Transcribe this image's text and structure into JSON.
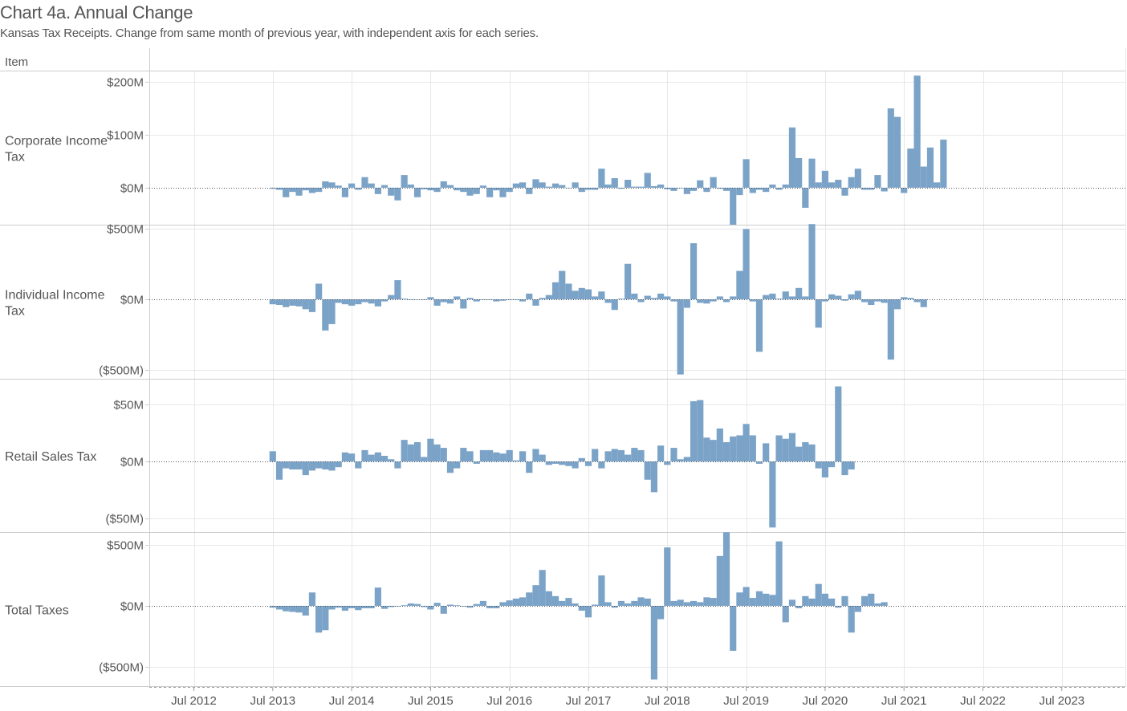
{
  "title": "Chart 4a. Annual Change",
  "subtitle": "Kansas Tax Receipts. Change from same month of previous year, with independent axis for each series.",
  "row_header": "Item",
  "colors": {
    "bar": "#7ba3c8",
    "grid": "#e8e8e8",
    "text": "#555555",
    "divider": "#cccccc"
  },
  "chart_data": [
    {
      "type": "bar",
      "title": "Corporate Income Tax",
      "x_start": "2013-07",
      "unit": "$M",
      "ylim": [
        -70,
        220
      ],
      "y_ticks": [
        {
          "v": 200,
          "label": "$200M"
        },
        {
          "v": 100,
          "label": "$100M"
        },
        {
          "v": 0,
          "label": "$0M"
        }
      ],
      "values": [
        -2,
        -4,
        -18,
        -8,
        -15,
        -5,
        -10,
        -8,
        12,
        10,
        4,
        -18,
        8,
        -4,
        20,
        8,
        -12,
        5,
        -15,
        -24,
        24,
        6,
        -18,
        -3,
        -5,
        -8,
        12,
        5,
        -5,
        -8,
        -15,
        -12,
        4,
        -18,
        -5,
        -18,
        -8,
        8,
        10,
        -12,
        16,
        10,
        2,
        8,
        5,
        0,
        10,
        -8,
        -4,
        -4,
        36,
        6,
        18,
        -2,
        15,
        2,
        2,
        28,
        3,
        6,
        -3,
        -6,
        0,
        -12,
        -6,
        14,
        -8,
        20,
        -2,
        -6,
        -70,
        -14,
        54,
        -10,
        -4,
        -8,
        6,
        -4,
        6,
        114,
        56,
        -38,
        55,
        10,
        32,
        10,
        15,
        -15,
        20,
        36,
        -4,
        -4,
        24,
        -7,
        150,
        134,
        -10,
        74,
        212,
        40,
        76,
        10,
        91
      ],
      "x_ticks": [
        "Jul 2012",
        "Jul 2013",
        "Jul 2014",
        "Jul 2015",
        "Jul 2016",
        "Jul 2017",
        "Jul 2018",
        "Jul 2019",
        "Jul 2020",
        "Jul 2021",
        "Jul 2022",
        "Jul 2023"
      ]
    },
    {
      "type": "bar",
      "title": "Individual Income Tax",
      "x_start": "2013-07",
      "unit": "$M",
      "ylim": [
        -560,
        520
      ],
      "y_ticks": [
        {
          "v": 500,
          "label": "$500M"
        },
        {
          "v": 0,
          "label": "$0M"
        },
        {
          "v": -500,
          "label": "($500M)"
        }
      ],
      "values": [
        -35,
        -40,
        -55,
        -45,
        -50,
        -70,
        -90,
        110,
        -220,
        -175,
        -25,
        -35,
        -45,
        -35,
        -20,
        -30,
        -50,
        -15,
        30,
        135,
        5,
        -5,
        0,
        -5,
        15,
        -45,
        -20,
        -30,
        20,
        -65,
        10,
        -15,
        -5,
        -5,
        -15,
        -10,
        -5,
        -5,
        -15,
        40,
        -45,
        10,
        30,
        120,
        200,
        110,
        60,
        80,
        70,
        20,
        55,
        -25,
        -75,
        5,
        250,
        40,
        -20,
        25,
        10,
        40,
        20,
        -15,
        -530,
        -60,
        395,
        -25,
        -30,
        -15,
        20,
        -20,
        20,
        200,
        495,
        -15,
        -370,
        30,
        40,
        5,
        55,
        20,
        80,
        20,
        530,
        -200,
        -15,
        35,
        25,
        -10,
        35,
        60,
        -20,
        -40,
        -15,
        -25,
        -425,
        -70,
        15,
        10,
        -20,
        -55
      ],
      "x_ticks": [
        "Jul 2012",
        "Jul 2013",
        "Jul 2014",
        "Jul 2015",
        "Jul 2016",
        "Jul 2017",
        "Jul 2018",
        "Jul 2019",
        "Jul 2020",
        "Jul 2021",
        "Jul 2022",
        "Jul 2023"
      ]
    },
    {
      "type": "bar",
      "title": "Retail Sales Tax",
      "x_start": "2013-07",
      "unit": "$M",
      "ylim": [
        -62,
        72
      ],
      "y_ticks": [
        {
          "v": 50,
          "label": "$50M"
        },
        {
          "v": 0,
          "label": "$0M"
        },
        {
          "v": -50,
          "label": "($50M)"
        }
      ],
      "values": [
        9,
        -16,
        -6,
        -7,
        -7,
        -12,
        -8,
        -6,
        -7,
        -8,
        -5,
        8,
        7,
        -6,
        10,
        6,
        8,
        5,
        2,
        -6,
        19,
        15,
        17,
        4,
        20,
        15,
        12,
        -10,
        -6,
        12,
        9,
        -2,
        10,
        10,
        8,
        7,
        10,
        1,
        9,
        -10,
        11,
        6,
        -3,
        -2,
        -3,
        -4,
        -6,
        3,
        -4,
        11,
        -6,
        9,
        11,
        10,
        6,
        12,
        10,
        -16,
        -27,
        14,
        -3,
        12,
        2,
        4,
        53,
        54,
        21,
        19,
        29,
        17,
        22,
        23,
        33,
        23,
        -2,
        16,
        -58,
        23,
        20,
        25,
        13,
        17,
        15,
        -6,
        -14,
        -5,
        66,
        -12,
        -7
      ],
      "x_ticks": [
        "Jul 2012",
        "Jul 2013",
        "Jul 2014",
        "Jul 2015",
        "Jul 2016",
        "Jul 2017",
        "Jul 2018",
        "Jul 2019",
        "Jul 2020",
        "Jul 2021",
        "Jul 2022",
        "Jul 2023"
      ]
    },
    {
      "type": "bar",
      "title": "Total Taxes",
      "x_start": "2013-07",
      "unit": "$M",
      "ylim": [
        -660,
        600
      ],
      "y_ticks": [
        {
          "v": 500,
          "label": "$500M"
        },
        {
          "v": 0,
          "label": "$0M"
        },
        {
          "v": -500,
          "label": "($500M)"
        }
      ],
      "values": [
        -15,
        -30,
        -45,
        -50,
        -55,
        -80,
        110,
        -220,
        -200,
        -30,
        -15,
        -40,
        -20,
        -35,
        -20,
        -20,
        150,
        -25,
        -10,
        -5,
        5,
        20,
        15,
        -10,
        -30,
        25,
        -65,
        10,
        5,
        -5,
        -15,
        15,
        40,
        -20,
        -20,
        30,
        45,
        60,
        70,
        110,
        170,
        295,
        120,
        80,
        40,
        65,
        20,
        -40,
        -95,
        10,
        250,
        30,
        -15,
        40,
        20,
        40,
        70,
        60,
        -605,
        -110,
        480,
        40,
        50,
        30,
        40,
        30,
        70,
        65,
        410,
        605,
        -370,
        110,
        155,
        65,
        120,
        100,
        90,
        530,
        -135,
        50,
        -20,
        80,
        60,
        180,
        100,
        60,
        -15,
        80,
        -220,
        -50,
        80,
        100,
        20,
        30
      ],
      "x_ticks": [
        "Jul 2012",
        "Jul 2013",
        "Jul 2014",
        "Jul 2015",
        "Jul 2016",
        "Jul 2017",
        "Jul 2018",
        "Jul 2019",
        "Jul 2020",
        "Jul 2021",
        "Jul 2022",
        "Jul 2023"
      ]
    }
  ]
}
